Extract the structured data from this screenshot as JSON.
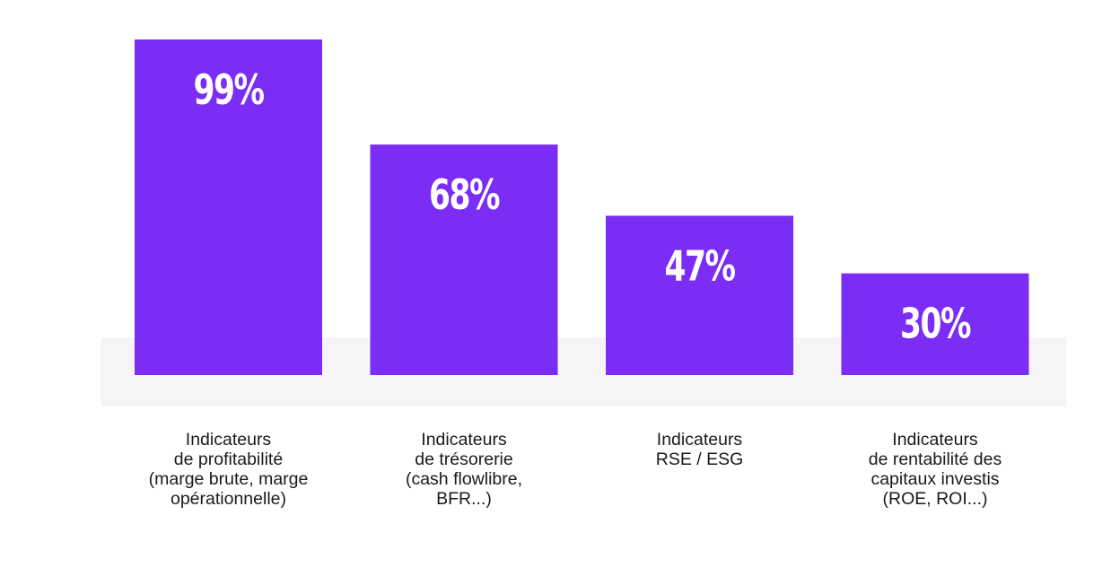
{
  "chart_data": {
    "type": "bar",
    "categories": [
      [
        "Indicateurs",
        "de profitabilité",
        "(marge brute, marge",
        "opérationnelle)"
      ],
      [
        "Indicateurs",
        "de trésorerie",
        "(cash flowlibre,",
        "BFR...)"
      ],
      [
        "Indicateurs",
        "RSE / ESG"
      ],
      [
        "Indicateurs",
        "de rentabilité des",
        "capitaux investis",
        "(ROE, ROI...)"
      ]
    ],
    "values": [
      99,
      68,
      47,
      30
    ],
    "value_labels": [
      "99%",
      "68%",
      "47%",
      "30%"
    ],
    "unit": "%",
    "title": "",
    "xlabel": "",
    "ylabel": "",
    "ylim": [
      0,
      99
    ],
    "grid": false,
    "legend": "none",
    "colors": {
      "bar": "#7b2cf5",
      "band": "#f6f4f7",
      "value_text": "#ffffff",
      "label_text": "#1a1a1a"
    }
  }
}
